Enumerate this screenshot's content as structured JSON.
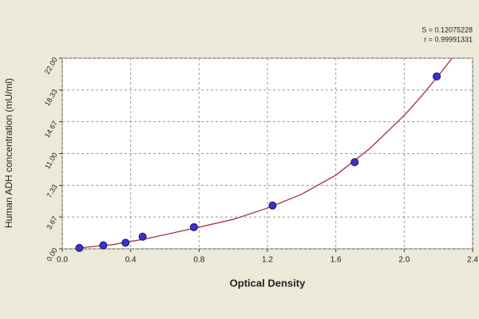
{
  "chart_data": {
    "type": "scatter",
    "x_label": "Optical Density",
    "y_label": "Human ADH concentration (mU/ml)",
    "annotations": [
      "S = 0.12075228",
      "r = 0.99991331"
    ],
    "points": {
      "x": [
        0.1,
        0.24,
        0.37,
        0.47,
        0.77,
        1.23,
        1.71,
        2.19
      ],
      "y": [
        0.1,
        0.4,
        0.7,
        1.4,
        2.5,
        5.0,
        10.0,
        19.9
      ],
      "color": "#3b2fd6"
    },
    "fit": {
      "x": [
        0.1,
        0.3,
        0.5,
        0.8,
        1.0,
        1.2,
        1.4,
        1.6,
        1.8,
        2.0,
        2.1,
        2.2,
        2.28
      ],
      "y": [
        0.1,
        0.5,
        1.2,
        2.5,
        3.4,
        4.7,
        6.3,
        8.5,
        11.6,
        15.4,
        17.6,
        20.0,
        22.0
      ],
      "color": "#a3303a"
    },
    "xlim": [
      0,
      2.4
    ],
    "xticks": [
      {
        "value": 0,
        "label": "0.0"
      },
      0.4,
      0.8,
      1.2,
      1.6,
      {
        "value": 2,
        "label": "2.0"
      },
      2.4
    ],
    "ylim": [
      0,
      22
    ],
    "yticks": [
      {
        "value": 0,
        "label": "0.00"
      },
      3.67,
      7.33,
      {
        "value": 11,
        "label": "11.00"
      },
      14.67,
      18.33,
      {
        "value": 22,
        "label": "22.00"
      }
    ],
    "grid": true
  }
}
